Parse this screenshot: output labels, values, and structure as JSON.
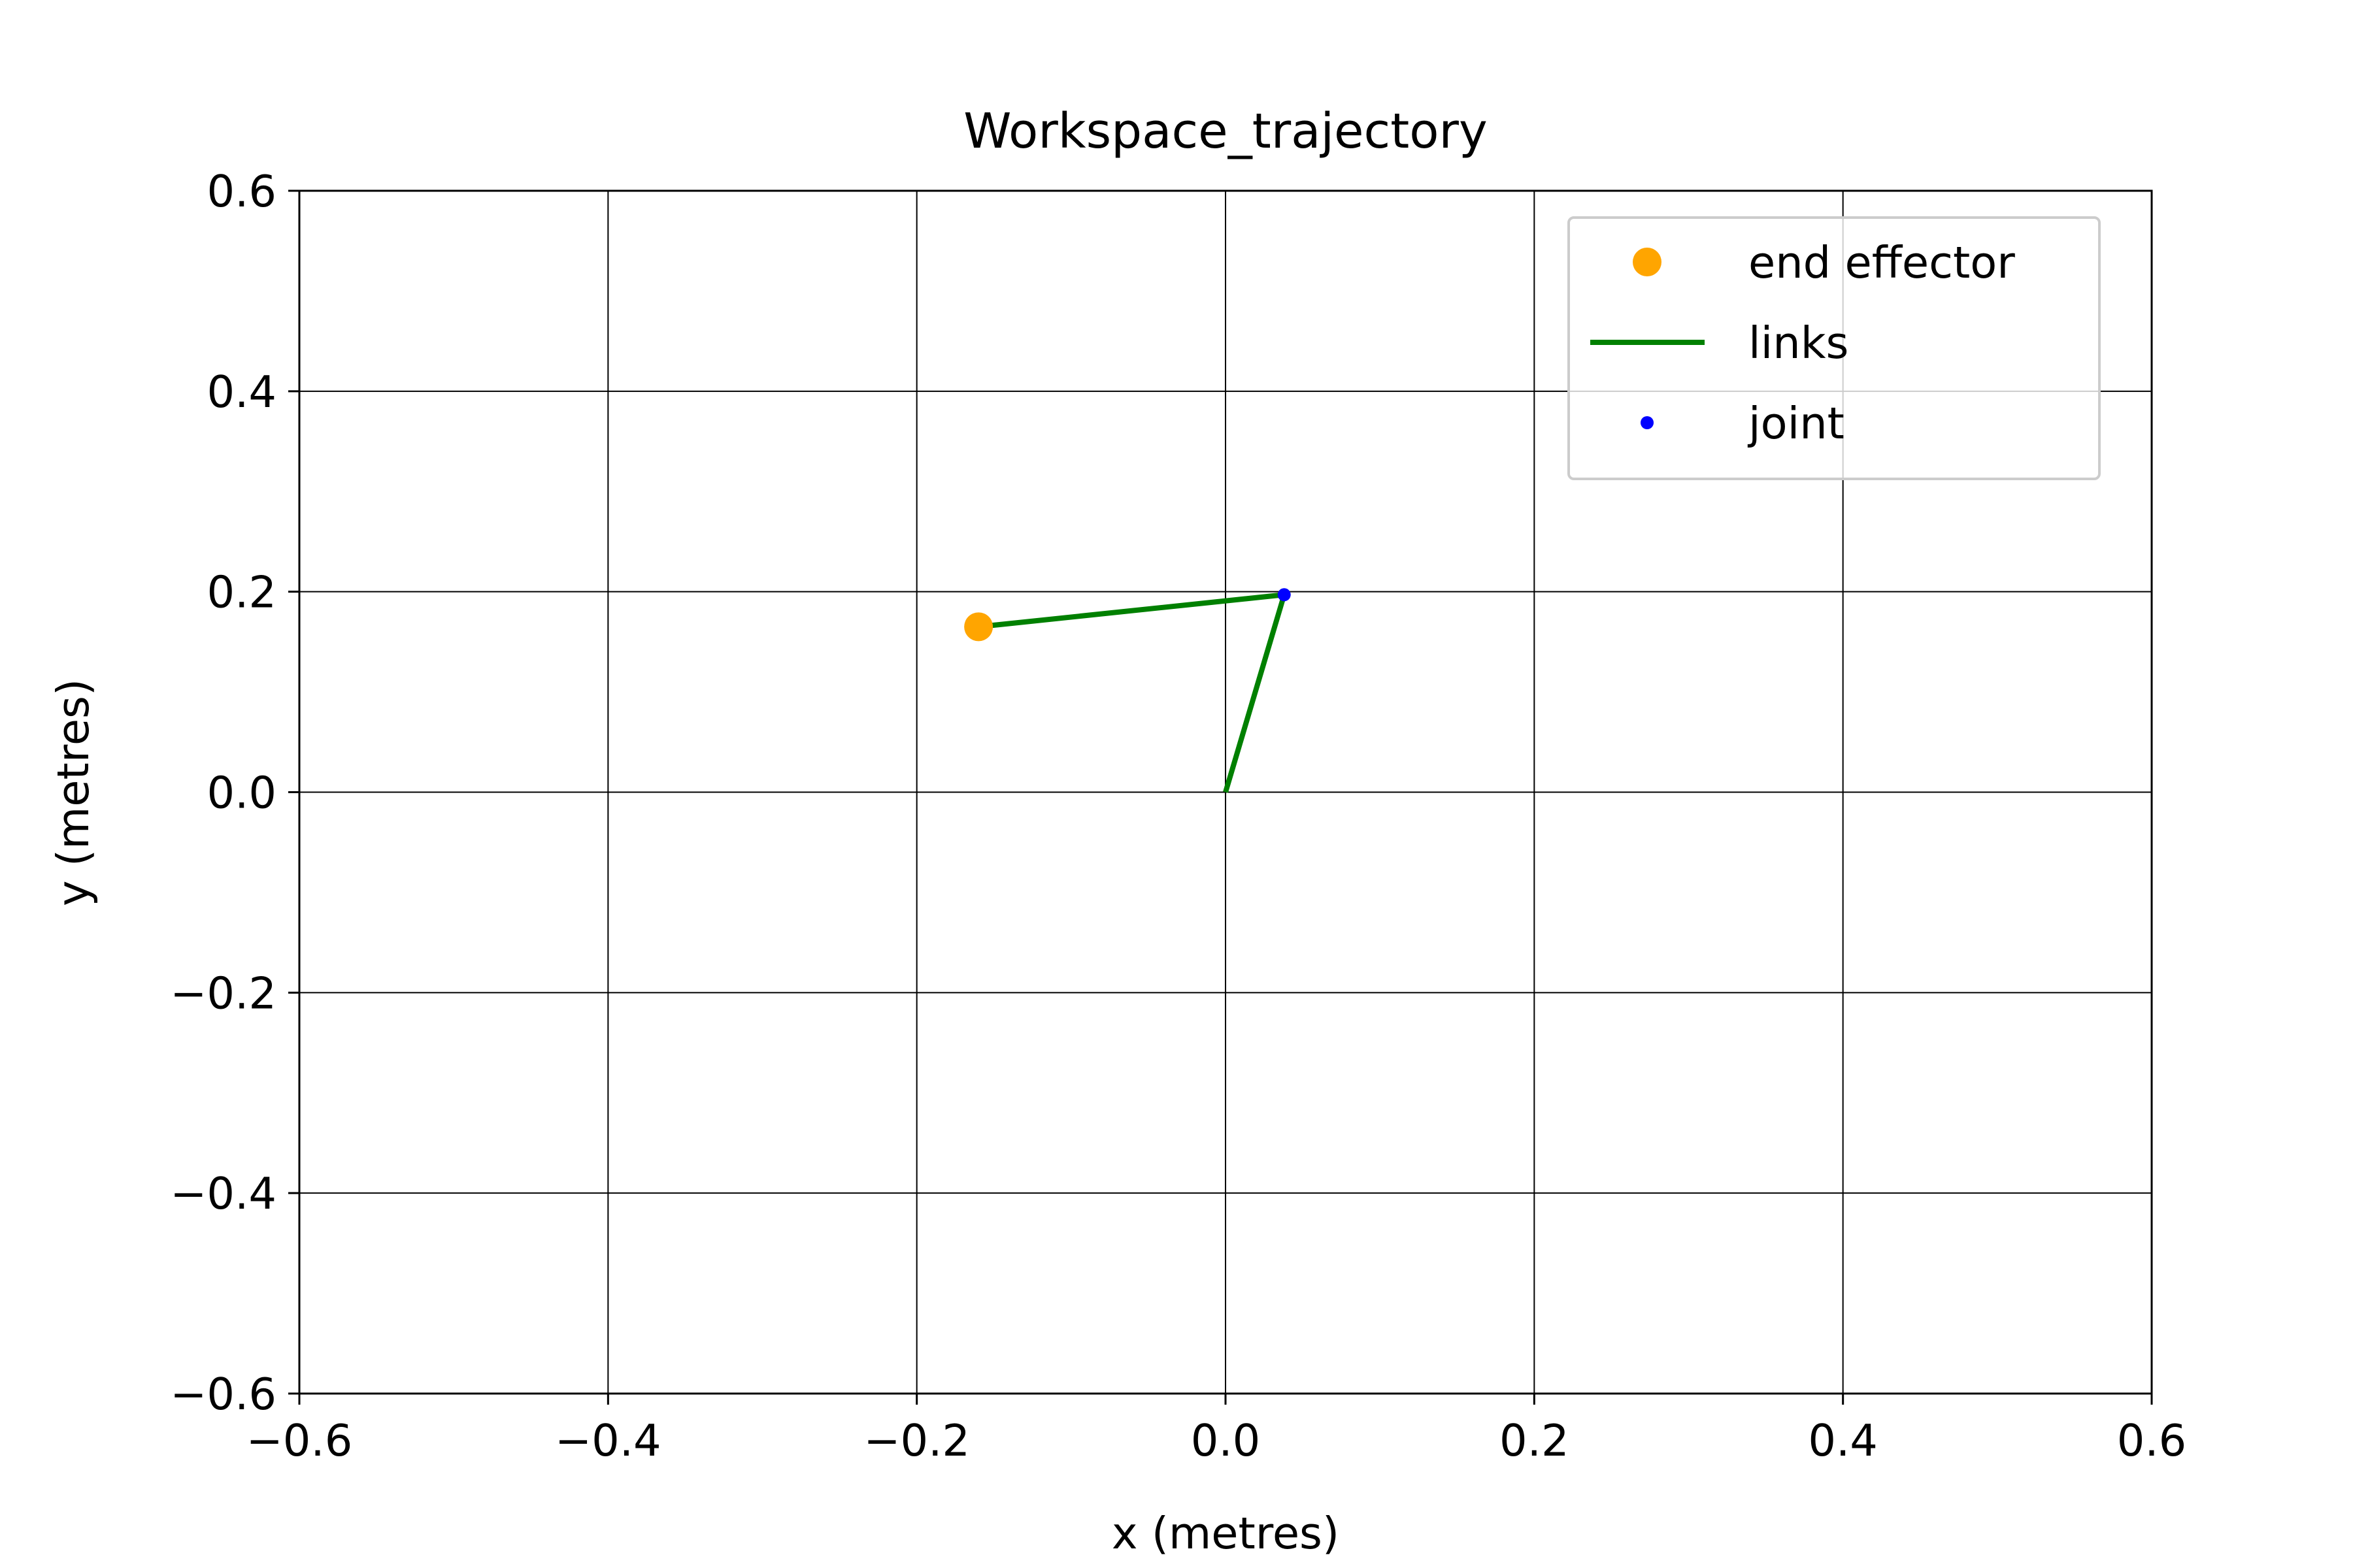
{
  "chart_data": {
    "type": "line",
    "title": "Workspace_trajectory",
    "xlabel": "x (metres)",
    "ylabel": "y (metres)",
    "xlim": [
      -0.6,
      0.6
    ],
    "ylim": [
      -0.6,
      0.6
    ],
    "grid": true,
    "xticks": [
      -0.6,
      -0.4,
      -0.2,
      0.0,
      0.2,
      0.4,
      0.6
    ],
    "yticks": [
      -0.6,
      -0.4,
      -0.2,
      0.0,
      0.2,
      0.4,
      0.6
    ],
    "xtick_labels": [
      "−0.6",
      "−0.4",
      "−0.2",
      "0.0",
      "0.2",
      "0.4",
      "0.6"
    ],
    "ytick_labels": [
      "−0.6",
      "−0.4",
      "−0.2",
      "0.0",
      "0.2",
      "0.4",
      "0.6"
    ],
    "legend_position": "top-right",
    "series": [
      {
        "name": "end effector",
        "kind": "marker",
        "color": "#ffa500",
        "points": [
          [
            -0.16,
            0.165
          ]
        ]
      },
      {
        "name": "links",
        "kind": "line",
        "color": "#008000",
        "points": [
          [
            0.0,
            0.0
          ],
          [
            0.038,
            0.197
          ],
          [
            -0.16,
            0.165
          ]
        ]
      },
      {
        "name": "joint",
        "kind": "marker",
        "color": "#0000ff",
        "points": [
          [
            0.038,
            0.197
          ]
        ]
      }
    ]
  }
}
